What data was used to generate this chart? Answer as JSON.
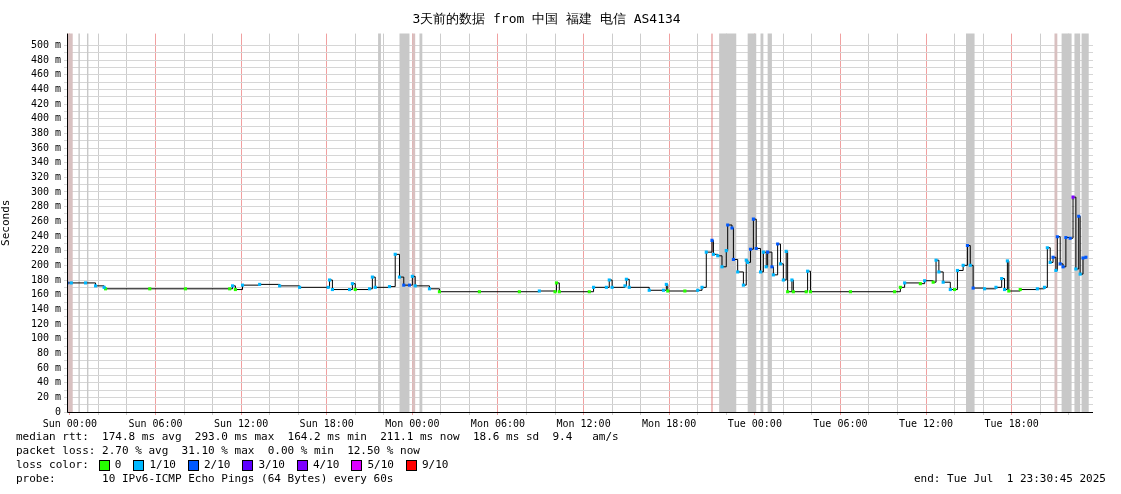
{
  "chart_data": {
    "type": "step",
    "title": "3天前的数据 from 中国 福建 电信 AS4134",
    "ylabel": "Seconds",
    "legend_title": "loss color:",
    "legend": "bottom",
    "grid": true,
    "xlim": [
      "2025-06-28T23:48",
      "2025-07-01T23:42"
    ],
    "xticks": [
      {
        "value": "2025-06-29T00:00",
        "label": "Sun 00:00"
      },
      {
        "value": "2025-06-29T02:00",
        "label": null
      },
      {
        "value": "2025-06-29T04:00",
        "label": null
      },
      {
        "value": "2025-06-29T06:00",
        "label": "Sun 06:00"
      },
      {
        "value": "2025-06-29T08:00",
        "label": null
      },
      {
        "value": "2025-06-29T10:00",
        "label": null
      },
      {
        "value": "2025-06-29T12:00",
        "label": "Sun 12:00"
      },
      {
        "value": "2025-06-29T14:00",
        "label": null
      },
      {
        "value": "2025-06-29T16:00",
        "label": null
      },
      {
        "value": "2025-06-29T18:00",
        "label": "Sun 18:00"
      },
      {
        "value": "2025-06-29T20:00",
        "label": null
      },
      {
        "value": "2025-06-29T22:00",
        "label": null
      },
      {
        "value": "2025-06-30T00:00",
        "label": "Mon 00:00"
      },
      {
        "value": "2025-06-30T02:00",
        "label": null
      },
      {
        "value": "2025-06-30T04:00",
        "label": null
      },
      {
        "value": "2025-06-30T06:00",
        "label": "Mon 06:00"
      },
      {
        "value": "2025-06-30T08:00",
        "label": null
      },
      {
        "value": "2025-06-30T10:00",
        "label": null
      },
      {
        "value": "2025-06-30T12:00",
        "label": "Mon 12:00"
      },
      {
        "value": "2025-06-30T14:00",
        "label": null
      },
      {
        "value": "2025-06-30T16:00",
        "label": null
      },
      {
        "value": "2025-06-30T18:00",
        "label": "Mon 18:00"
      },
      {
        "value": "2025-06-30T20:00",
        "label": null
      },
      {
        "value": "2025-06-30T22:00",
        "label": null
      },
      {
        "value": "2025-07-01T00:00",
        "label": "Tue 00:00"
      },
      {
        "value": "2025-07-01T02:00",
        "label": null
      },
      {
        "value": "2025-07-01T04:00",
        "label": null
      },
      {
        "value": "2025-07-01T06:00",
        "label": "Tue 06:00"
      },
      {
        "value": "2025-07-01T08:00",
        "label": null
      },
      {
        "value": "2025-07-01T10:00",
        "label": null
      },
      {
        "value": "2025-07-01T12:00",
        "label": "Tue 12:00"
      },
      {
        "value": "2025-07-01T14:00",
        "label": null
      },
      {
        "value": "2025-07-01T16:00",
        "label": null
      },
      {
        "value": "2025-07-01T18:00",
        "label": "Tue 18:00"
      },
      {
        "value": "2025-07-01T20:00",
        "label": null
      },
      {
        "value": "2025-07-01T22:00",
        "label": null
      }
    ],
    "ylim": [
      0,
      516
    ],
    "yticks": [
      0,
      {
        "value": 10,
        "label": null
      },
      {
        "value": 20,
        "label": "20 m"
      },
      {
        "value": 30,
        "label": null
      },
      {
        "value": 40,
        "label": "40 m"
      },
      {
        "value": 50,
        "label": null
      },
      {
        "value": 60,
        "label": "60 m"
      },
      {
        "value": 70,
        "label": null
      },
      {
        "value": 80,
        "label": "80 m"
      },
      {
        "value": 90,
        "label": null
      },
      {
        "value": 100,
        "label": "100 m"
      },
      {
        "value": 110,
        "label": null
      },
      {
        "value": 120,
        "label": "120 m"
      },
      {
        "value": 130,
        "label": null
      },
      {
        "value": 140,
        "label": "140 m"
      },
      {
        "value": 150,
        "label": null
      },
      {
        "value": 160,
        "label": "160 m"
      },
      {
        "value": 170,
        "label": null
      },
      {
        "value": 180,
        "label": "180 m"
      },
      {
        "value": 190,
        "label": null
      },
      {
        "value": 200,
        "label": "200 m"
      },
      {
        "value": 210,
        "label": null
      },
      {
        "value": 220,
        "label": "220 m"
      },
      {
        "value": 230,
        "label": null
      },
      {
        "value": 240,
        "label": "240 m"
      },
      {
        "value": 250,
        "label": null
      },
      {
        "value": 260,
        "label": "260 m"
      },
      {
        "value": 270,
        "label": null
      },
      {
        "value": 280,
        "label": "280 m"
      },
      {
        "value": 290,
        "label": null
      },
      {
        "value": 300,
        "label": "300 m"
      },
      {
        "value": 310,
        "label": null
      },
      {
        "value": 320,
        "label": "320 m"
      },
      {
        "value": 330,
        "label": null
      },
      {
        "value": 340,
        "label": "340 m"
      },
      {
        "value": 350,
        "label": null
      },
      {
        "value": 360,
        "label": "360 m"
      },
      {
        "value": 370,
        "label": null
      },
      {
        "value": 380,
        "label": "380 m"
      },
      {
        "value": 390,
        "label": null
      },
      {
        "value": 400,
        "label": "400 m"
      },
      {
        "value": 410,
        "label": null
      },
      {
        "value": 420,
        "label": "420 m"
      },
      {
        "value": 430,
        "label": null
      },
      {
        "value": 440,
        "label": "440 m"
      },
      {
        "value": 450,
        "label": null
      },
      {
        "value": 460,
        "label": "460 m"
      },
      {
        "value": 470,
        "label": null
      },
      {
        "value": 480,
        "label": "480 m"
      },
      {
        "value": 490,
        "label": null
      },
      {
        "value": 500,
        "label": "500 m"
      }
    ],
    "bands": [
      {
        "axis": "x",
        "from": "2025-06-28T23:48",
        "to": "2025-06-29T00:12",
        "color": "#d8c0c0"
      },
      {
        "axis": "x",
        "from": "2025-06-29T00:36",
        "to": "2025-06-29T00:42",
        "color": "#c8c8c8"
      },
      {
        "axis": "x",
        "from": "2025-06-29T01:12",
        "to": "2025-06-29T01:18",
        "color": "#c8c8c8"
      },
      {
        "axis": "x",
        "from": "2025-06-29T21:36",
        "to": "2025-06-29T21:48",
        "color": "#c8c8c8"
      },
      {
        "axis": "x",
        "from": "2025-06-29T23:06",
        "to": "2025-06-29T23:48",
        "color": "#c8c8c8"
      },
      {
        "axis": "x",
        "from": "2025-06-30T00:00",
        "to": "2025-06-30T00:12",
        "color": "#d8c0c0"
      },
      {
        "axis": "x",
        "from": "2025-06-30T00:30",
        "to": "2025-06-30T00:42",
        "color": "#c8c8c8"
      },
      {
        "axis": "x",
        "from": "2025-06-30T21:30",
        "to": "2025-06-30T22:42",
        "color": "#c8c8c8"
      },
      {
        "axis": "x",
        "from": "2025-06-30T23:30",
        "to": "2025-07-01T00:06",
        "color": "#c8c8c8"
      },
      {
        "axis": "x",
        "from": "2025-07-01T00:24",
        "to": "2025-07-01T00:36",
        "color": "#c8c8c8"
      },
      {
        "axis": "x",
        "from": "2025-07-01T00:54",
        "to": "2025-07-01T01:12",
        "color": "#c8c8c8"
      },
      {
        "axis": "x",
        "from": "2025-07-01T14:48",
        "to": "2025-07-01T15:24",
        "color": "#c8c8c8"
      },
      {
        "axis": "x",
        "from": "2025-07-01T21:00",
        "to": "2025-07-01T21:12",
        "color": "#d8c0c0"
      },
      {
        "axis": "x",
        "from": "2025-07-01T21:30",
        "to": "2025-07-01T22:12",
        "color": "#c8c8c8"
      },
      {
        "axis": "x",
        "from": "2025-07-01T22:24",
        "to": "2025-07-01T22:48",
        "color": "#c8c8c8"
      },
      {
        "axis": "x",
        "from": "2025-07-01T22:54",
        "to": "2025-07-01T23:24",
        "color": "#c8c8c8"
      }
    ],
    "ref_lines": [
      {
        "axis": "x",
        "value": "2025-06-30T21:00",
        "color": "#e08080"
      }
    ],
    "series": [
      {
        "color": "#000000",
        "line_style": "solid",
        "marker": "none",
        "x": [
          "2025-06-28T23:48",
          "2025-06-29T00:06",
          "2025-06-29T01:06",
          "2025-06-29T01:48",
          "2025-06-29T02:24",
          "2025-06-29T02:30",
          "2025-06-29T05:36",
          "2025-06-29T08:06",
          "2025-06-29T11:12",
          "2025-06-29T11:24",
          "2025-06-29T11:36",
          "2025-06-29T12:06",
          "2025-06-29T13:18",
          "2025-06-29T14:42",
          "2025-06-29T16:06",
          "2025-06-29T18:06",
          "2025-06-29T18:12",
          "2025-06-29T18:24",
          "2025-06-29T19:36",
          "2025-06-29T19:48",
          "2025-06-29T20:00",
          "2025-06-29T21:00",
          "2025-06-29T21:12",
          "2025-06-29T21:24",
          "2025-06-29T22:24",
          "2025-06-29T22:48",
          "2025-06-29T23:06",
          "2025-06-29T23:24",
          "2025-06-29T23:48",
          "2025-06-30T00:00",
          "2025-06-30T00:12",
          "2025-06-30T01:12",
          "2025-06-30T01:54",
          "2025-06-30T04:42",
          "2025-06-30T07:30",
          "2025-06-30T08:54",
          "2025-06-30T10:00",
          "2025-06-30T10:06",
          "2025-06-30T10:18",
          "2025-06-30T12:24",
          "2025-06-30T12:42",
          "2025-06-30T13:36",
          "2025-06-30T13:48",
          "2025-06-30T14:00",
          "2025-06-30T14:54",
          "2025-06-30T15:00",
          "2025-06-30T15:12",
          "2025-06-30T16:36",
          "2025-06-30T17:36",
          "2025-06-30T17:48",
          "2025-06-30T17:54",
          "2025-06-30T19:06",
          "2025-06-30T20:00",
          "2025-06-30T20:18",
          "2025-06-30T20:36",
          "2025-06-30T21:00",
          "2025-06-30T21:06",
          "2025-06-30T21:24",
          "2025-06-30T21:42",
          "2025-06-30T22:00",
          "2025-06-30T22:06",
          "2025-06-30T22:24",
          "2025-06-30T22:30",
          "2025-06-30T22:48",
          "2025-06-30T23:12",
          "2025-06-30T23:24",
          "2025-06-30T23:30",
          "2025-06-30T23:42",
          "2025-06-30T23:54",
          "2025-07-01T00:06",
          "2025-07-01T00:24",
          "2025-07-01T00:36",
          "2025-07-01T00:48",
          "2025-07-01T00:54",
          "2025-07-01T01:12",
          "2025-07-01T01:18",
          "2025-07-01T01:36",
          "2025-07-01T01:48",
          "2025-07-01T02:00",
          "2025-07-01T02:12",
          "2025-07-01T02:18",
          "2025-07-01T02:36",
          "2025-07-01T02:42",
          "2025-07-01T03:36",
          "2025-07-01T03:42",
          "2025-07-01T03:54",
          "2025-07-01T06:42",
          "2025-07-01T09:48",
          "2025-07-01T10:12",
          "2025-07-01T10:30",
          "2025-07-01T11:36",
          "2025-07-01T11:54",
          "2025-07-01T12:30",
          "2025-07-01T12:42",
          "2025-07-01T12:54",
          "2025-07-01T13:12",
          "2025-07-01T13:42",
          "2025-07-01T14:00",
          "2025-07-01T14:12",
          "2025-07-01T14:36",
          "2025-07-01T14:54",
          "2025-07-01T15:06",
          "2025-07-01T15:18",
          "2025-07-01T16:06",
          "2025-07-01T16:54",
          "2025-07-01T17:18",
          "2025-07-01T17:30",
          "2025-07-01T17:42",
          "2025-07-01T17:48",
          "2025-07-01T18:36",
          "2025-07-01T19:48",
          "2025-07-01T20:18",
          "2025-07-01T20:30",
          "2025-07-01T20:42",
          "2025-07-01T20:54",
          "2025-07-01T21:06",
          "2025-07-01T21:12",
          "2025-07-01T21:24",
          "2025-07-01T21:36",
          "2025-07-01T21:48",
          "2025-07-01T22:06",
          "2025-07-01T22:18",
          "2025-07-01T22:30",
          "2025-07-01T22:42",
          "2025-07-01T22:48",
          "2025-07-01T23:00",
          "2025-07-01T23:12"
        ],
        "values": [
          176,
          176,
          176,
          172,
          170,
          168,
          168,
          168,
          168,
          172,
          167,
          173,
          174,
          172,
          170,
          170,
          180,
          167,
          167,
          175,
          167,
          168,
          184,
          170,
          171,
          215,
          184,
          173,
          173,
          185,
          172,
          168,
          164,
          164,
          164,
          165,
          164,
          176,
          164,
          164,
          170,
          170,
          180,
          170,
          172,
          181,
          170,
          166,
          166,
          174,
          165,
          165,
          166,
          170,
          218,
          234,
          215,
          213,
          198,
          220,
          255,
          251,
          208,
          191,
          173,
          207,
          204,
          222,
          263,
          223,
          191,
          218,
          198,
          218,
          198,
          187,
          229,
          202,
          180,
          219,
          164,
          180,
          164,
          164,
          192,
          164,
          164,
          164,
          170,
          176,
          175,
          179,
          177,
          207,
          191,
          177,
          167,
          167,
          193,
          200,
          227,
          200,
          169,
          168,
          170,
          182,
          167,
          206,
          165,
          167,
          168,
          170,
          224,
          204,
          211,
          193,
          239,
          202,
          198,
          238,
          237,
          293,
          195,
          267,
          188,
          210,
          211
        ]
      },
      {
        "type": "scatter",
        "name": "0",
        "color": "#26ff00",
        "marker": "square",
        "x": [
          "2025-06-29T02:30",
          "2025-06-29T05:36",
          "2025-06-29T08:06",
          "2025-06-29T11:12",
          "2025-06-29T11:36",
          "2025-06-29T20:00",
          "2025-06-30T01:54",
          "2025-06-30T04:42",
          "2025-06-30T07:30",
          "2025-06-30T10:00",
          "2025-06-30T10:06",
          "2025-06-30T10:18",
          "2025-06-30T12:24",
          "2025-06-30T17:54",
          "2025-06-30T19:06",
          "2025-07-01T02:18",
          "2025-07-01T02:42",
          "2025-07-01T03:36",
          "2025-07-01T03:54",
          "2025-07-01T06:42",
          "2025-07-01T09:48",
          "2025-07-01T10:12",
          "2025-07-01T11:36",
          "2025-07-01T12:30",
          "2025-07-01T14:00",
          "2025-07-01T17:48",
          "2025-07-01T18:36"
        ],
        "values": [
          168,
          168,
          168,
          168,
          167,
          167,
          164,
          164,
          164,
          164,
          176,
          164,
          164,
          165,
          165,
          164,
          164,
          164,
          164,
          164,
          164,
          170,
          175,
          177,
          167,
          165,
          167
        ]
      },
      {
        "type": "scatter",
        "name": "1/10",
        "color": "#00b8ff",
        "marker": "square",
        "x": [
          "2025-06-29T00:06",
          "2025-06-29T01:06",
          "2025-06-29T01:48",
          "2025-06-29T02:24",
          "2025-06-29T11:24",
          "2025-06-29T12:06",
          "2025-06-29T13:18",
          "2025-06-29T14:42",
          "2025-06-29T16:06",
          "2025-06-29T18:06",
          "2025-06-29T18:12",
          "2025-06-29T18:24",
          "2025-06-29T19:36",
          "2025-06-29T19:48",
          "2025-06-29T21:00",
          "2025-06-29T21:12",
          "2025-06-29T21:24",
          "2025-06-29T22:24",
          "2025-06-29T22:48",
          "2025-06-29T23:06",
          "2025-06-30T00:00",
          "2025-06-30T00:12",
          "2025-06-30T01:12",
          "2025-06-30T08:54",
          "2025-06-30T12:42",
          "2025-06-30T13:36",
          "2025-06-30T13:48",
          "2025-06-30T14:00",
          "2025-06-30T14:54",
          "2025-06-30T15:00",
          "2025-06-30T15:12",
          "2025-06-30T16:36",
          "2025-06-30T17:36",
          "2025-06-30T17:48",
          "2025-06-30T20:00",
          "2025-06-30T20:18",
          "2025-06-30T20:36",
          "2025-06-30T21:06",
          "2025-06-30T21:24",
          "2025-06-30T21:42",
          "2025-06-30T22:00",
          "2025-06-30T22:48",
          "2025-06-30T23:12",
          "2025-06-30T23:24",
          "2025-06-30T23:30",
          "2025-07-01T00:24",
          "2025-07-01T00:36",
          "2025-07-01T00:48",
          "2025-07-01T01:18",
          "2025-07-01T01:48",
          "2025-07-01T02:00",
          "2025-07-01T02:12",
          "2025-07-01T02:36",
          "2025-07-01T03:42",
          "2025-07-01T10:30",
          "2025-07-01T11:54",
          "2025-07-01T12:42",
          "2025-07-01T12:54",
          "2025-07-01T13:12",
          "2025-07-01T13:42",
          "2025-07-01T14:12",
          "2025-07-01T14:36",
          "2025-07-01T15:06",
          "2025-07-01T16:06",
          "2025-07-01T16:54",
          "2025-07-01T17:18",
          "2025-07-01T17:30",
          "2025-07-01T17:42",
          "2025-07-01T19:48",
          "2025-07-01T20:18",
          "2025-07-01T20:30",
          "2025-07-01T20:42",
          "2025-07-01T21:06",
          "2025-07-01T22:30",
          "2025-07-01T22:48"
        ],
        "values": [
          176,
          176,
          172,
          170,
          172,
          173,
          174,
          172,
          170,
          170,
          180,
          167,
          167,
          175,
          168,
          184,
          170,
          171,
          215,
          184,
          185,
          172,
          168,
          165,
          170,
          170,
          180,
          170,
          172,
          181,
          170,
          166,
          166,
          174,
          166,
          170,
          218,
          215,
          213,
          198,
          220,
          191,
          173,
          207,
          204,
          191,
          218,
          198,
          187,
          202,
          180,
          219,
          180,
          192,
          176,
          179,
          207,
          191,
          177,
          167,
          193,
          200,
          200,
          168,
          170,
          182,
          167,
          206,
          168,
          170,
          224,
          204,
          193,
          195,
          188
        ]
      },
      {
        "type": "scatter",
        "name": "2/10",
        "color": "#0059ff",
        "marker": "square",
        "x": [
          "2025-06-28T23:48",
          "2025-06-29T23:24",
          "2025-06-29T23:48",
          "2025-06-30T21:00",
          "2025-06-30T22:06",
          "2025-06-30T22:24",
          "2025-06-30T22:30",
          "2025-06-30T23:42",
          "2025-06-30T23:54",
          "2025-07-01T00:06",
          "2025-07-01T00:54",
          "2025-07-01T01:12",
          "2025-07-01T01:36",
          "2025-07-01T14:54",
          "2025-07-01T15:18",
          "2025-07-01T20:54",
          "2025-07-01T21:12",
          "2025-07-01T21:24",
          "2025-07-01T21:36",
          "2025-07-01T21:48",
          "2025-07-01T22:06",
          "2025-07-01T22:42",
          "2025-07-01T23:00",
          "2025-07-01T23:12"
        ],
        "values": [
          176,
          173,
          173,
          234,
          255,
          251,
          208,
          222,
          263,
          223,
          218,
          198,
          229,
          227,
          169,
          211,
          239,
          202,
          198,
          238,
          237,
          267,
          210,
          211
        ]
      },
      {
        "type": "scatter",
        "name": "3/10",
        "color": "#5e00ff",
        "marker": "square"
      },
      {
        "type": "scatter",
        "name": "4/10",
        "color": "#7e00ff",
        "marker": "square",
        "x": [
          "2025-07-01T22:18"
        ],
        "values": [
          293
        ]
      },
      {
        "type": "scatter",
        "name": "5/10",
        "color": "#dd00ff",
        "marker": "square"
      },
      {
        "type": "scatter",
        "name": "9/10",
        "color": "#ff0000",
        "marker": "square"
      }
    ],
    "annotations": [
      "median rtt:  174.8 ms avg  293.0 ms max  164.2 ms min  211.1 ms now  18.6 ms sd  9.4   am/s",
      "packet loss: 2.70 % avg  31.10 % max  0.00 % min  12.50 % now",
      "probe:       10 IPv6-ICMP Echo Pings (64 Bytes) every 60s",
      "end: Tue Jul  1 23:30:45 2025"
    ]
  }
}
